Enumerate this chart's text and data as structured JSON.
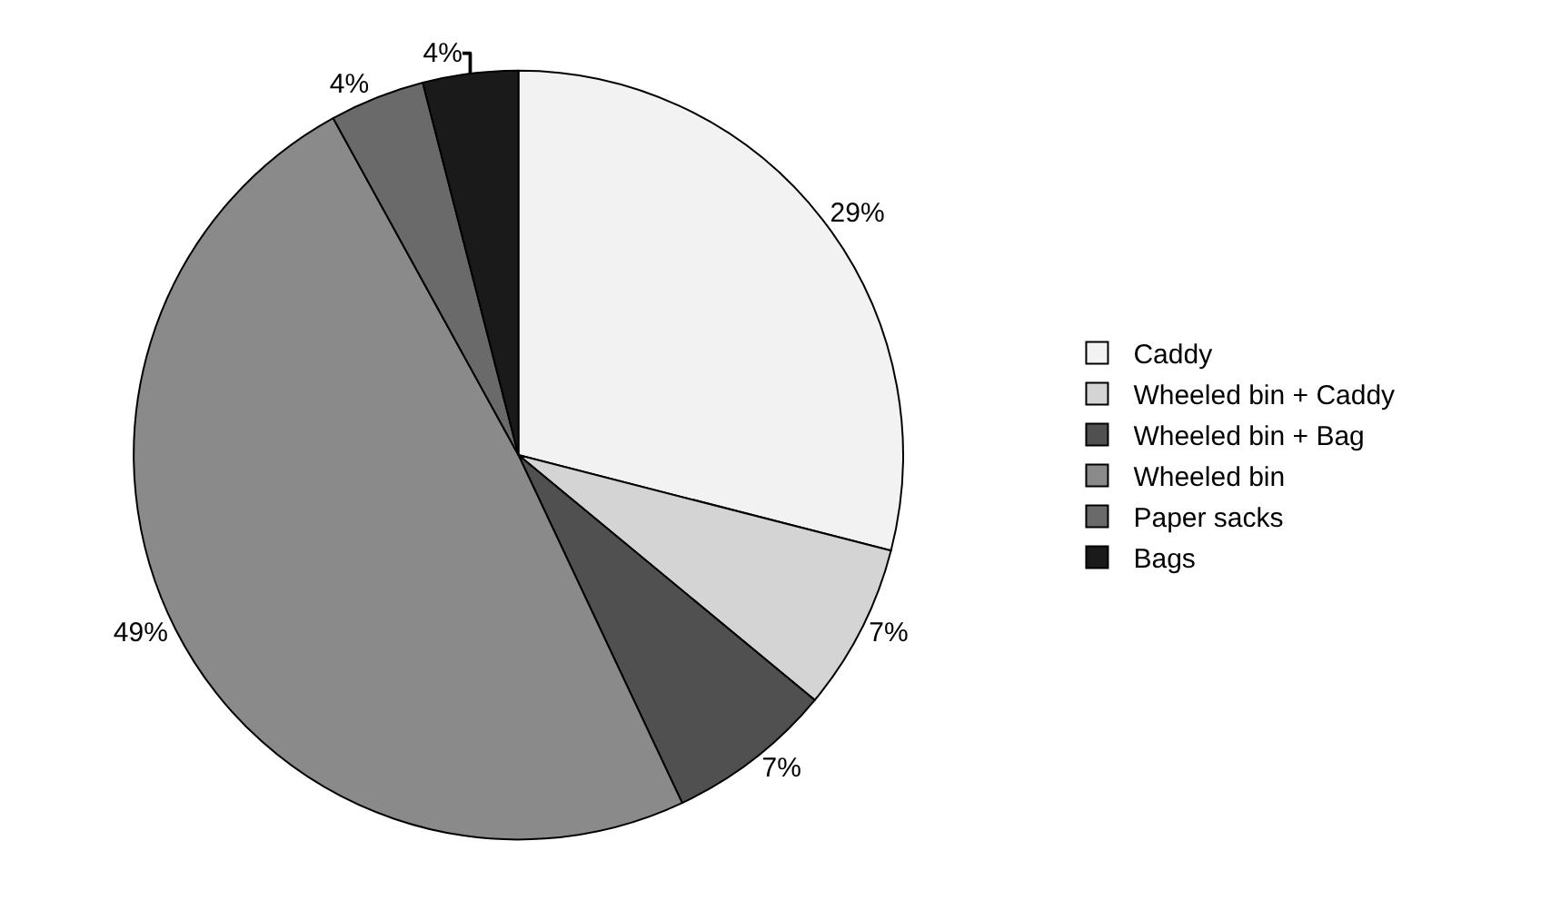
{
  "chart_data": {
    "type": "pie",
    "categories": [
      "Caddy",
      "Wheeled bin + Caddy",
      "Wheeled bin + Bag",
      "Wheeled bin",
      "Paper sacks",
      "Bags"
    ],
    "values": [
      29,
      7,
      7,
      49,
      4,
      4
    ],
    "colors": [
      "#f2f2f2",
      "#d4d4d4",
      "#505050",
      "#8a8a8a",
      "#6a6a6a",
      "#1a1a1a"
    ],
    "value_labels": [
      "29%",
      "7%",
      "7%",
      "49%",
      "4%",
      "4%"
    ],
    "legend": "right"
  }
}
